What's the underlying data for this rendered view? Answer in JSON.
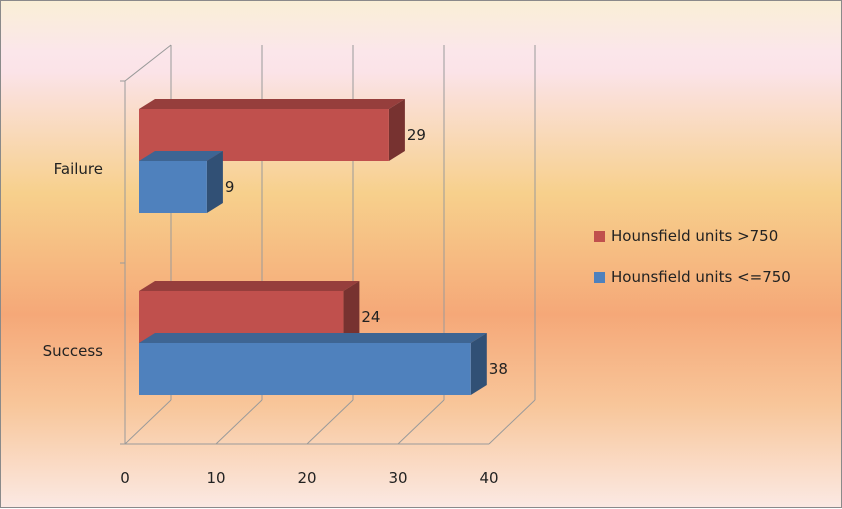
{
  "chart_data": {
    "type": "bar",
    "orientation": "horizontal",
    "style": "3d-clustered",
    "categories": [
      "Failure",
      "Success"
    ],
    "series": [
      {
        "name": "Hounsfield units >750",
        "color": "#c0504d",
        "values": [
          29,
          24
        ]
      },
      {
        "name": "Hounsfield units <=750",
        "color": "#4f81bd",
        "values": [
          9,
          38
        ]
      }
    ],
    "xlim": [
      0,
      40
    ],
    "x_ticks": [
      0,
      10,
      20,
      30,
      40
    ],
    "grid": true,
    "legend_position": "right",
    "data_labels": true
  }
}
